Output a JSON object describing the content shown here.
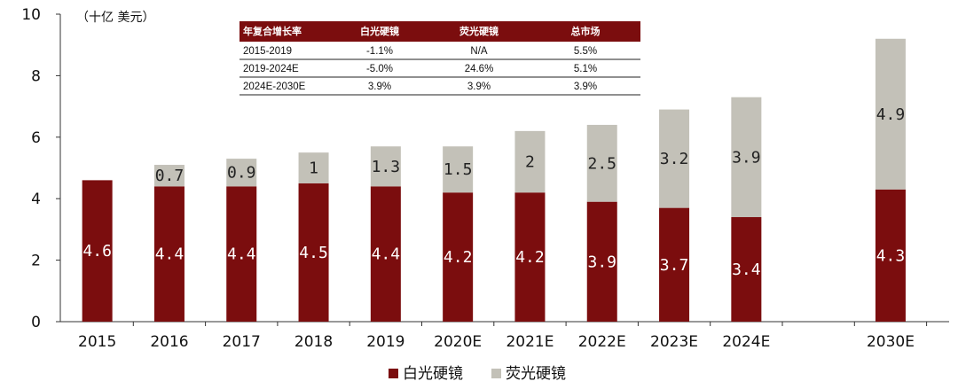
{
  "chart_data": {
    "type": "bar",
    "stacked": true,
    "unit_label": "（十亿 美元）",
    "categories": [
      "2015",
      "2016",
      "2017",
      "2018",
      "2019",
      "2020E",
      "2021E",
      "2022E",
      "2023E",
      "2024E",
      "",
      "2030E"
    ],
    "series": [
      {
        "name": "白光硬镜",
        "values": [
          4.6,
          4.4,
          4.4,
          4.5,
          4.4,
          4.2,
          4.2,
          3.9,
          3.7,
          3.4,
          null,
          4.3
        ],
        "labels": [
          "4.6",
          "4.4",
          "4.4",
          "4.5",
          "4.4",
          "4.2",
          "4.2",
          "3.9",
          "3.7",
          "3.4",
          null,
          "4.3"
        ]
      },
      {
        "name": "荧光硬镜",
        "values": [
          null,
          0.7,
          0.9,
          1.0,
          1.3,
          1.5,
          2.0,
          2.5,
          3.2,
          3.9,
          null,
          4.9
        ],
        "labels": [
          null,
          "0.7",
          "0.9",
          "1",
          "1.3",
          "1.5",
          "2",
          "2.5",
          "3.2",
          "3.9",
          null,
          "4.9"
        ]
      }
    ],
    "ylim": [
      0,
      10
    ],
    "yticks": [
      "0",
      "2",
      "4",
      "6",
      "8",
      "10"
    ],
    "grid": false,
    "legend_position": "bottom",
    "colors": {
      "white_light": "#7b0d0e",
      "fluorescent": "#c3c1b8",
      "table_header": "#7b0d0e"
    },
    "inset_table": {
      "headers": [
        "年复合增长率",
        "白光硬镜",
        "荧光硬镜",
        "总市场"
      ],
      "rows": [
        [
          "2015-2019",
          "-1.1%",
          "N/A",
          "5.5%"
        ],
        [
          "2019-2024E",
          "-5.0%",
          "24.6%",
          "5.1%"
        ],
        [
          "2024E-2030E",
          "3.9%",
          "3.9%",
          "3.9%"
        ]
      ]
    }
  }
}
